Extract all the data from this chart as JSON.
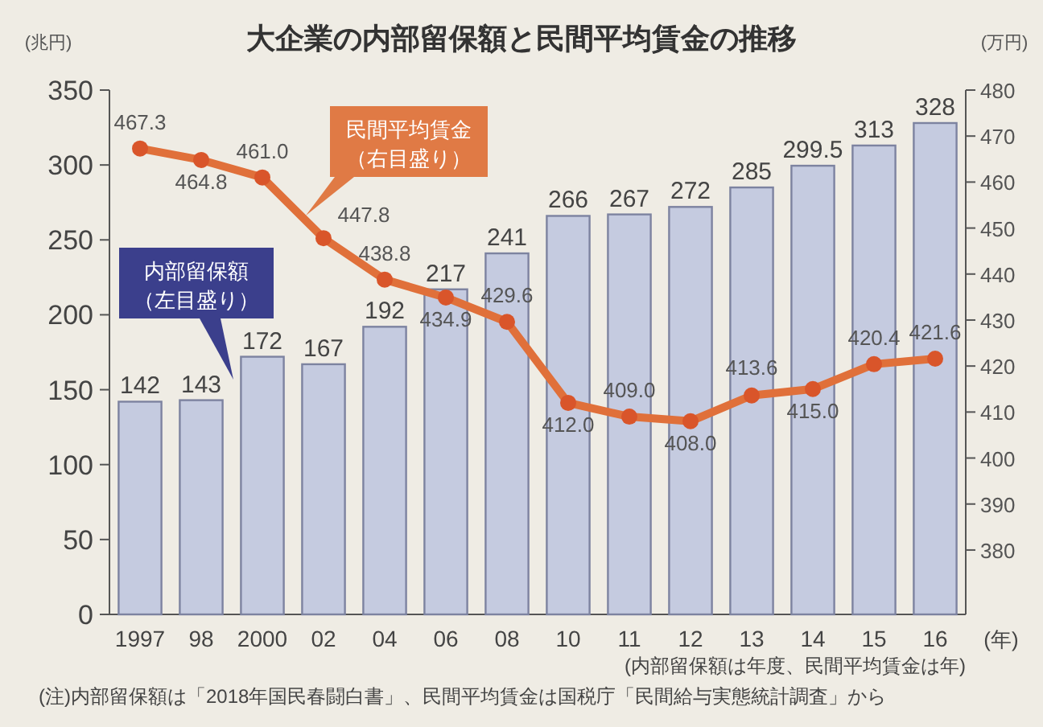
{
  "chart_data": {
    "type": "bar",
    "title": "大企業の内部留保額と民間平均賃金の推移",
    "xlabel": "(年)",
    "ylabel": "(兆円)",
    "y2label": "(万円)",
    "categories": [
      "1997",
      "98",
      "2000",
      "02",
      "04",
      "06",
      "08",
      "10",
      "11",
      "12",
      "13",
      "14",
      "15",
      "16"
    ],
    "series": [
      {
        "name": "内部留保額（左目盛り）",
        "color": "#c5cbe0",
        "values": [
          142,
          143,
          172,
          167,
          192,
          217,
          241,
          266,
          267,
          272,
          285,
          299.5,
          313,
          328
        ]
      },
      {
        "name": "民間平均賃金（右目盛り）",
        "type": "line",
        "axis": "y2",
        "color": "#e0703a",
        "values": [
          467.3,
          464.8,
          461.0,
          447.8,
          438.8,
          434.9,
          429.6,
          412.0,
          409.0,
          408.0,
          413.6,
          415.0,
          420.4,
          421.6
        ],
        "value_labels": [
          "467.3",
          "464.8",
          "461.0",
          "447.8",
          "438.8",
          "434.9",
          "429.6",
          "412.0",
          "409.0",
          "408.0",
          "413.6",
          "415.0",
          "420.4",
          "421.6"
        ]
      }
    ],
    "ylim": [
      0,
      350
    ],
    "yticks": [
      0,
      50,
      100,
      150,
      200,
      250,
      300,
      350
    ],
    "y2lim": [
      366,
      480
    ],
    "y2ticks": [
      380,
      390,
      400,
      410,
      420,
      430,
      440,
      450,
      460,
      470,
      480
    ],
    "data_labels": true,
    "marker": "circle",
    "line_style": "solid",
    "annotations": [
      "(内部留保額は年度、民間平均賃金は年)",
      "(注)内部留保額は「2018年国民春闘白書」、民間平均賃金は国税庁「民間給与実態統計調査」から"
    ]
  }
}
